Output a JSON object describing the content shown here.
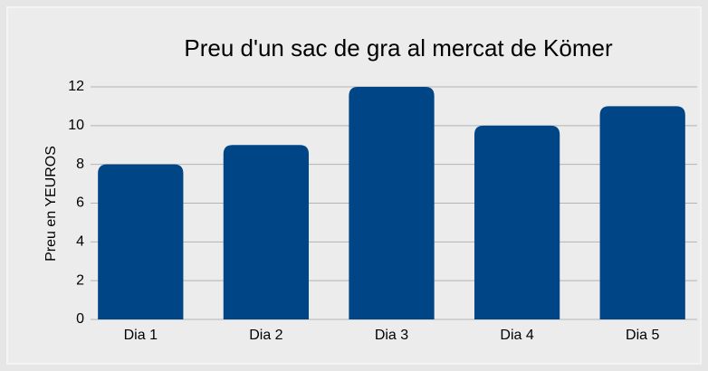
{
  "chart_data": {
    "type": "bar",
    "title": "Preu d'un sac de gra al mercat de Kömer",
    "y_label": "Preu en YEUROS",
    "categories": [
      "Dia 1",
      "Dia 2",
      "Dia 3",
      "Dia 4",
      "Dia 5"
    ],
    "values": [
      8,
      9,
      12,
      10,
      11
    ],
    "color": "#004586",
    "ylim": [
      0,
      12
    ],
    "yticks": [
      0,
      2,
      4,
      6,
      8,
      10,
      12
    ],
    "grid": true
  }
}
